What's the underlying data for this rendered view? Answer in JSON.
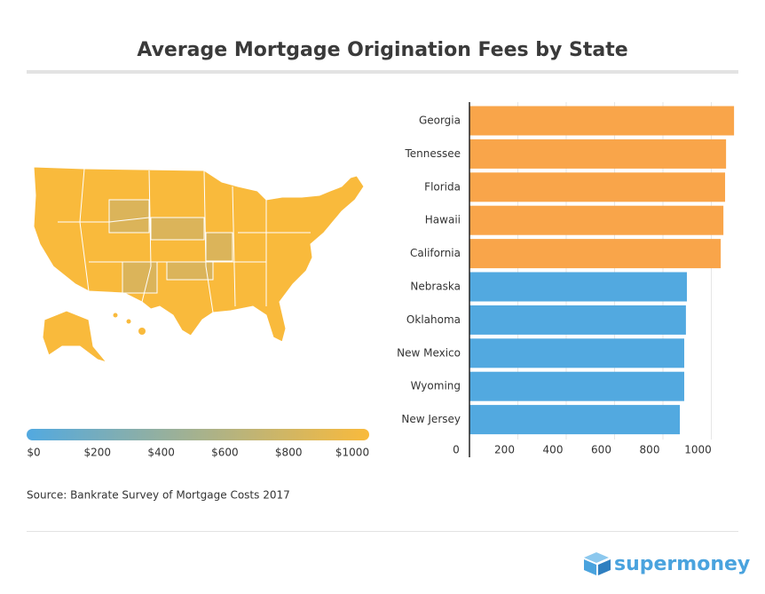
{
  "title": "Average Mortgage Origination Fees by State",
  "source": "Source: Bankrate Survey of Mortgage Costs 2017",
  "brand": "supermoney",
  "map_legend": {
    "range": [
      0,
      1000
    ],
    "colors": [
      "#52a9e0",
      "#f9ba3c"
    ],
    "ticks": [
      {
        "value": 0,
        "label": "$0"
      },
      {
        "value": 200,
        "label": "$200"
      },
      {
        "value": 400,
        "label": "$400"
      },
      {
        "value": 600,
        "label": "$600"
      },
      {
        "value": 800,
        "label": "$800"
      },
      {
        "value": 1000,
        "label": "$1000"
      }
    ]
  },
  "chart_data": {
    "type": "bar",
    "orientation": "horizontal",
    "categories": [
      "Georgia",
      "Tennessee",
      "Florida",
      "Hawaii",
      "California",
      "Nebraska",
      "Oklahoma",
      "New Mexico",
      "Wyoming",
      "New Jersey"
    ],
    "values": [
      1094,
      1061,
      1057,
      1050,
      1039,
      899,
      895,
      888,
      888,
      870
    ],
    "colors": [
      "#f9a54a",
      "#f9a54a",
      "#f9a54a",
      "#f9a54a",
      "#f9a54a",
      "#52a9e0",
      "#52a9e0",
      "#52a9e0",
      "#52a9e0",
      "#52a9e0"
    ],
    "xlim": [
      0,
      1100
    ],
    "xticks": [
      0,
      200,
      400,
      600,
      800,
      1000
    ],
    "grid": true
  }
}
